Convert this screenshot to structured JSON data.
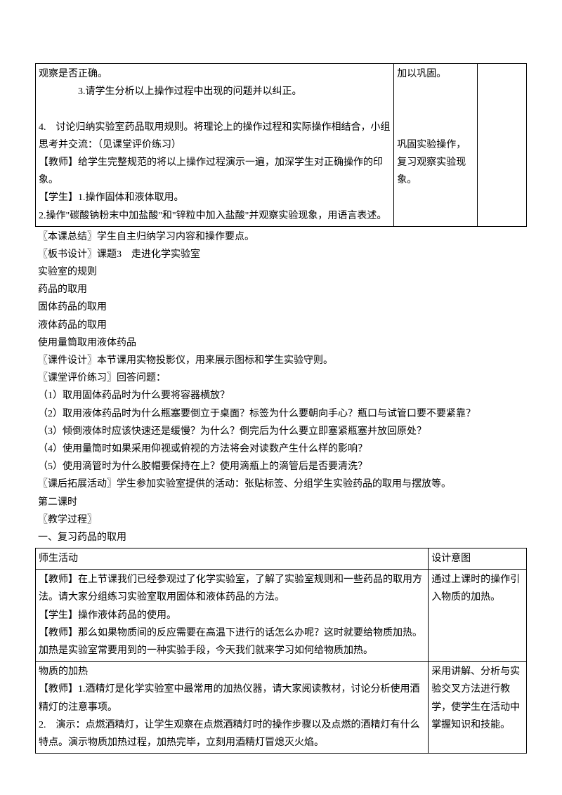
{
  "table1": {
    "r1c1": "观察是否正确。\n　　　　3.请学生分析以上操作过程中出现的问题并以纠正。\n\n4.　讨论归纳实验室药品取用规则。将理论上的操作过程和实际操作相结合，小组思考并交流：（见课堂评价练习）\n【教师】给学生完整规范的将以上操作过程演示一遍，加深学生对正确操作的印象。\n【学生】1.操作固体和液体取用。\n2.操作\"碳酸钠粉末中加盐酸\"和\"锌粒中加入盐酸\"并观察实验现象，用语言表述。",
    "r1c2": "加以巩固。\n\n\n\n巩固实验操作，复习观察实验现象。"
  },
  "mid": {
    "l1": "〖本课总结〗学生自主归纳学习内容和操作要点。",
    "l2": "〖板书设计〗课题3　走进化学实验室",
    "l3": "实验室的规则",
    "l4": "药品的取用",
    "l5": "固体药品的取用",
    "l6": "液体药品的取用",
    "l7": "使用量筒取用液体药品",
    "l8": "〖课件设计〗本节课用实物投影仪，用来展示图标和学生实验守则。",
    "l9": "〖课堂评价练习〗回答问题：",
    "l10": "（1）取用固体药品时为什么要将容器横放？",
    "l11": "（2）取用液体药品时为什么瓶塞要倒立于桌面？标签为什么要朝向手心？瓶口与试管口要不要紧靠？",
    "l12": "（3）倾倒液体时应该快速还是缓慢？为什么？倒完后为什么要立即塞紧瓶塞并放回原处？",
    "l13": "（4）使用量筒时如果采用仰视或俯视的方法将会对读数产生什么样的影响？",
    "l14": "（5）使用滴管时为什么胶帽要保持在上？使用滴瓶上的滴管后是否要清洗？",
    "l15": "〖课后拓展活动〗学生参加实验室提供的活动：张贴标签、分组学生实验药品的取用与摆放等。",
    "l16": "第二课时",
    "l17": "〖教学过程〗",
    "l18": "一、复习药品的取用"
  },
  "table2": {
    "h1": "师生活动",
    "h2": "设计意图",
    "r1c1": "【教师】在上节课我们已经参观过了化学实验室，了解了实验室规则和一些药品的取用方法。请大家分组练习实验室取用固体和液体药品的方法。\n【学生】操作液体药品的使用。\n【教师】那么如果物质间的反应需要在高温下进行的话怎么办呢？这时就要给物质加热。加热是实验室常要用到的一种实验手段，今天我们就来学习如何给物质加热。",
    "r1c2": "通过上课时的操作引入物质的加热。",
    "r2c1": "物质的加热\n【教师】1.酒精灯是化学实验室中最常用的加热仪器，请大家阅读教材，讨论分析使用酒精灯的注意事项。\n2.　演示：点燃酒精灯，让学生观察在点燃酒精灯时的操作步骤以及点燃的酒精灯有什么特点。演示物质加热过程，加热完毕，立刻用酒精灯冒熄灭火焰。",
    "r2c2": "采用讲解、分析与实验交叉方法进行教学，使学生在活动中掌握知识和技能。"
  }
}
